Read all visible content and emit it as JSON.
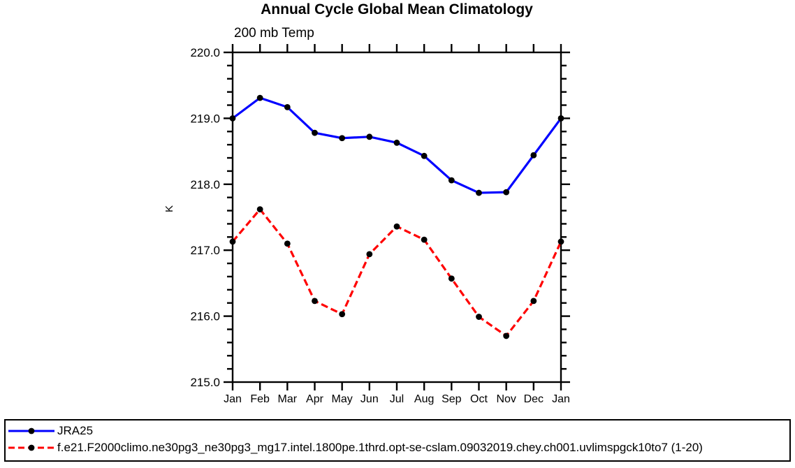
{
  "chart_data": {
    "type": "line",
    "title": "Annual Cycle Global Mean Climatology",
    "subtitle": "200 mb Temp",
    "xlabel": "",
    "ylabel": "K",
    "categories": [
      "Jan",
      "Feb",
      "Mar",
      "Apr",
      "May",
      "Jun",
      "Jul",
      "Aug",
      "Sep",
      "Oct",
      "Nov",
      "Dec",
      "Jan"
    ],
    "series": [
      {
        "name": "JRA25",
        "color": "#0000ff",
        "line_style": "solid",
        "marker": "filled-circle",
        "marker_color": "#000000",
        "values": [
          219.0,
          219.31,
          219.17,
          218.78,
          218.7,
          218.72,
          218.63,
          218.43,
          218.06,
          217.87,
          217.88,
          218.44,
          219.0
        ]
      },
      {
        "name": "f.e21.F2000climo.ne30pg3_ne30pg3_mg17.intel.1800pe.1thrd.opt-se-cslam.09032019.chey.ch001.uvlimspgck10to7 (1-20)",
        "color": "#ff0000",
        "line_style": "dashed",
        "marker": "filled-circle",
        "marker_color": "#000000",
        "values": [
          217.13,
          217.62,
          217.1,
          216.23,
          216.03,
          216.94,
          217.36,
          217.16,
          216.57,
          215.99,
          215.7,
          216.23,
          217.13
        ]
      }
    ],
    "ylim": [
      215.0,
      220.0
    ],
    "ytick_major_interval": 1.0,
    "ytick_minor_interval": 0.2,
    "ytick_labels": [
      "215.0",
      "216.0",
      "217.0",
      "218.0",
      "219.0",
      "220.0"
    ],
    "grid": false,
    "axis_color": "#000000",
    "tick_style": "outward-all-sides",
    "legend_position": "bottom-outside-box"
  }
}
